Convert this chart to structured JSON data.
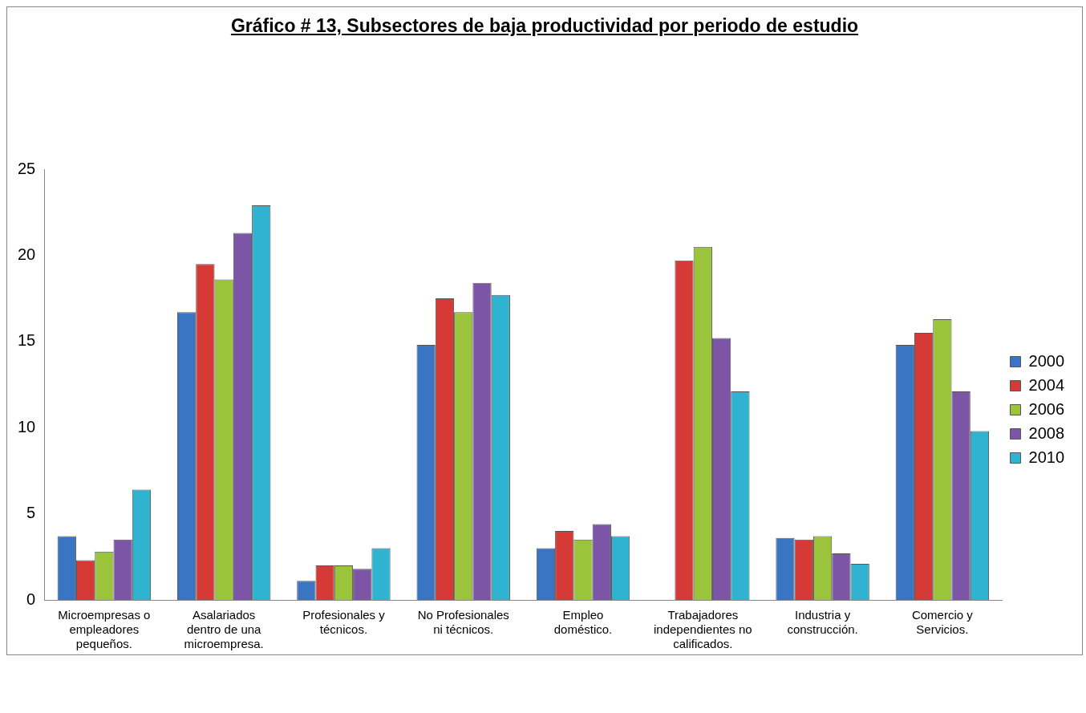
{
  "chart_data": {
    "type": "bar",
    "title": "Gráfico # 13, Subsectores de baja productividad por periodo de estudio",
    "categories": [
      "Microempresas o empleadores pequeños.",
      "Asalariados dentro de una microempresa.",
      "Profesionales y técnicos.",
      "No Profesionales ni técnicos.",
      "Empleo doméstico.",
      "Trabajadores independientes no calificados.",
      "Industria  y construcción.",
      "Comercio y Servicios."
    ],
    "series": [
      {
        "name": "2000",
        "color": "#3a75c4",
        "values": [
          3.7,
          16.7,
          1.1,
          14.8,
          3.0,
          null,
          3.6,
          14.8
        ]
      },
      {
        "name": "2004",
        "color": "#d63a36",
        "values": [
          2.3,
          19.5,
          2.0,
          17.5,
          4.0,
          19.7,
          3.5,
          15.5
        ]
      },
      {
        "name": "2006",
        "color": "#9ac43c",
        "values": [
          2.8,
          18.6,
          2.0,
          16.7,
          3.5,
          20.5,
          3.7,
          16.3
        ]
      },
      {
        "name": "2008",
        "color": "#7d55a6",
        "values": [
          3.5,
          21.3,
          1.8,
          18.4,
          4.4,
          15.2,
          2.7,
          12.1
        ]
      },
      {
        "name": "2010",
        "color": "#2fb3d1",
        "values": [
          6.4,
          22.9,
          3.0,
          17.7,
          3.7,
          12.1,
          2.1,
          9.8
        ]
      }
    ],
    "ylim": [
      0,
      25
    ],
    "yticks": [
      0,
      5,
      10,
      15,
      20,
      25
    ],
    "grid": false,
    "legend": "right"
  }
}
